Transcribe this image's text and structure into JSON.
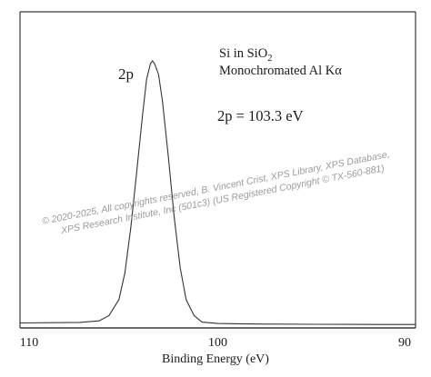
{
  "chart_data": {
    "type": "line",
    "title": "",
    "xlabel": "Binding Energy (eV)",
    "ylabel": "",
    "xlim": [
      110,
      90
    ],
    "x_reversed": true,
    "x_ticks": [
      110,
      100,
      90
    ],
    "y_ticks": [],
    "grid": false,
    "legend": "none",
    "line_color": "#333333",
    "series": [
      {
        "x": [
          110,
          107,
          106,
          105.5,
          105,
          104.7,
          104.4,
          104.1,
          103.8,
          103.6,
          103.4,
          103.3,
          103.2,
          103.0,
          102.8,
          102.5,
          102.2,
          101.9,
          101.6,
          101.2,
          100.8,
          100,
          98,
          95,
          92,
          90
        ],
        "y": [
          0.012,
          0.014,
          0.02,
          0.04,
          0.1,
          0.2,
          0.37,
          0.58,
          0.8,
          0.93,
          0.99,
          1.0,
          0.99,
          0.95,
          0.85,
          0.64,
          0.41,
          0.22,
          0.1,
          0.04,
          0.015,
          0.01,
          0.008,
          0.007,
          0.006,
          0.006
        ]
      }
    ],
    "annotations": {
      "sample_line1_main": "Si in SiO",
      "sample_line1_sub": "2",
      "sample_line2_main": "Monochromated Al K",
      "sample_line2_greek": "α",
      "peak_value": "2p = 103.3 eV",
      "peak_label": "2p"
    },
    "watermark": {
      "line1": "©  2020-2025,  All copyrights reserved,   B. Vincent Crist,  XPS Library, XPS Database,",
      "line2": "XPS Research Institute, Inc (501c3)   (US Registered Copyright © TX-560-881)"
    }
  }
}
